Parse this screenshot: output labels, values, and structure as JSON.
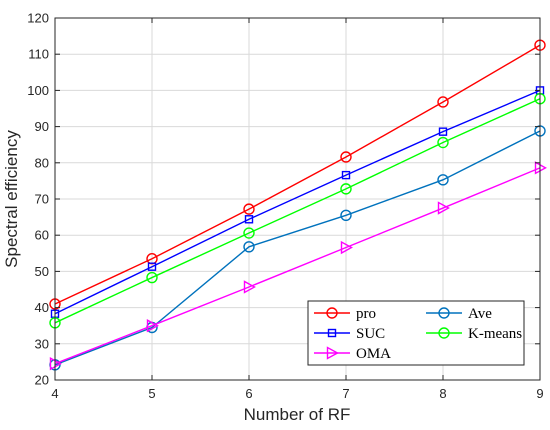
{
  "chart_data": {
    "type": "line",
    "x": [
      4,
      5,
      6,
      7,
      8,
      9
    ],
    "xlabel": "Number of RF",
    "ylabel": "Spectral efficiency",
    "xlim": [
      4,
      9
    ],
    "ylim": [
      20,
      120
    ],
    "xticks": [
      "4",
      "5",
      "6",
      "7",
      "8",
      "9"
    ],
    "yticks": [
      "20",
      "30",
      "40",
      "50",
      "60",
      "70",
      "80",
      "90",
      "100",
      "110",
      "120"
    ],
    "grid": true,
    "legend_position": "bottom-right",
    "series": [
      {
        "name": "pro",
        "color": "#ff0000",
        "marker": "circle",
        "values": [
          41,
          53.5,
          67.2,
          81.6,
          96.8,
          112.5
        ]
      },
      {
        "name": "Ave",
        "color": "#0072bd",
        "marker": "circle",
        "values": [
          24.2,
          34.5,
          56.8,
          65.5,
          75.3,
          88.8
        ]
      },
      {
        "name": "SUC",
        "color": "#0000ff",
        "marker": "square",
        "values": [
          38.3,
          51.3,
          64.4,
          76.6,
          88.6,
          100
        ]
      },
      {
        "name": "K-means",
        "color": "#00ff00",
        "marker": "circle",
        "values": [
          35.8,
          48.3,
          60.6,
          72.8,
          85.6,
          97.7
        ]
      },
      {
        "name": "OMA",
        "color": "#ff00ff",
        "marker": "triangle-right",
        "values": [
          24.5,
          35,
          45.7,
          56.6,
          67.5,
          78.6
        ]
      }
    ]
  }
}
